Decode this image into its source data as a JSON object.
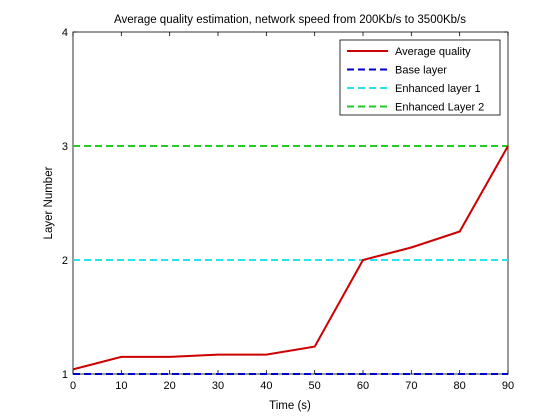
{
  "chart_data": {
    "type": "line",
    "title": "Average quality estimation, network speed from 200Kb/s to 3500Kb/s",
    "xlabel": "Time (s)",
    "ylabel": "Layer Number",
    "xlim": [
      0,
      90
    ],
    "ylim": [
      1,
      4
    ],
    "xticks": [
      0,
      10,
      20,
      30,
      40,
      50,
      60,
      70,
      80,
      90
    ],
    "yticks": [
      1,
      2,
      3,
      4
    ],
    "grid": false,
    "legend_position": "top-right",
    "series": [
      {
        "name": "Average quality",
        "color": "#cc0000",
        "style": "solid",
        "x": [
          0,
          10,
          20,
          30,
          40,
          50,
          60,
          70,
          80,
          90
        ],
        "y": [
          1.04,
          1.15,
          1.15,
          1.17,
          1.17,
          1.24,
          2.0,
          2.11,
          2.25,
          3.0
        ]
      },
      {
        "name": "Base layer",
        "color": "#0000cc",
        "style": "dashed",
        "x": [
          0,
          90
        ],
        "y": [
          1,
          1
        ]
      },
      {
        "name": "Enhanced layer 1",
        "color": "#22e5f0",
        "style": "dashed",
        "x": [
          0,
          90
        ],
        "y": [
          2,
          2
        ]
      },
      {
        "name": "Enhanced Layer 2",
        "color": "#22cc22",
        "style": "dashed",
        "x": [
          0,
          90
        ],
        "y": [
          3,
          3
        ]
      }
    ]
  }
}
